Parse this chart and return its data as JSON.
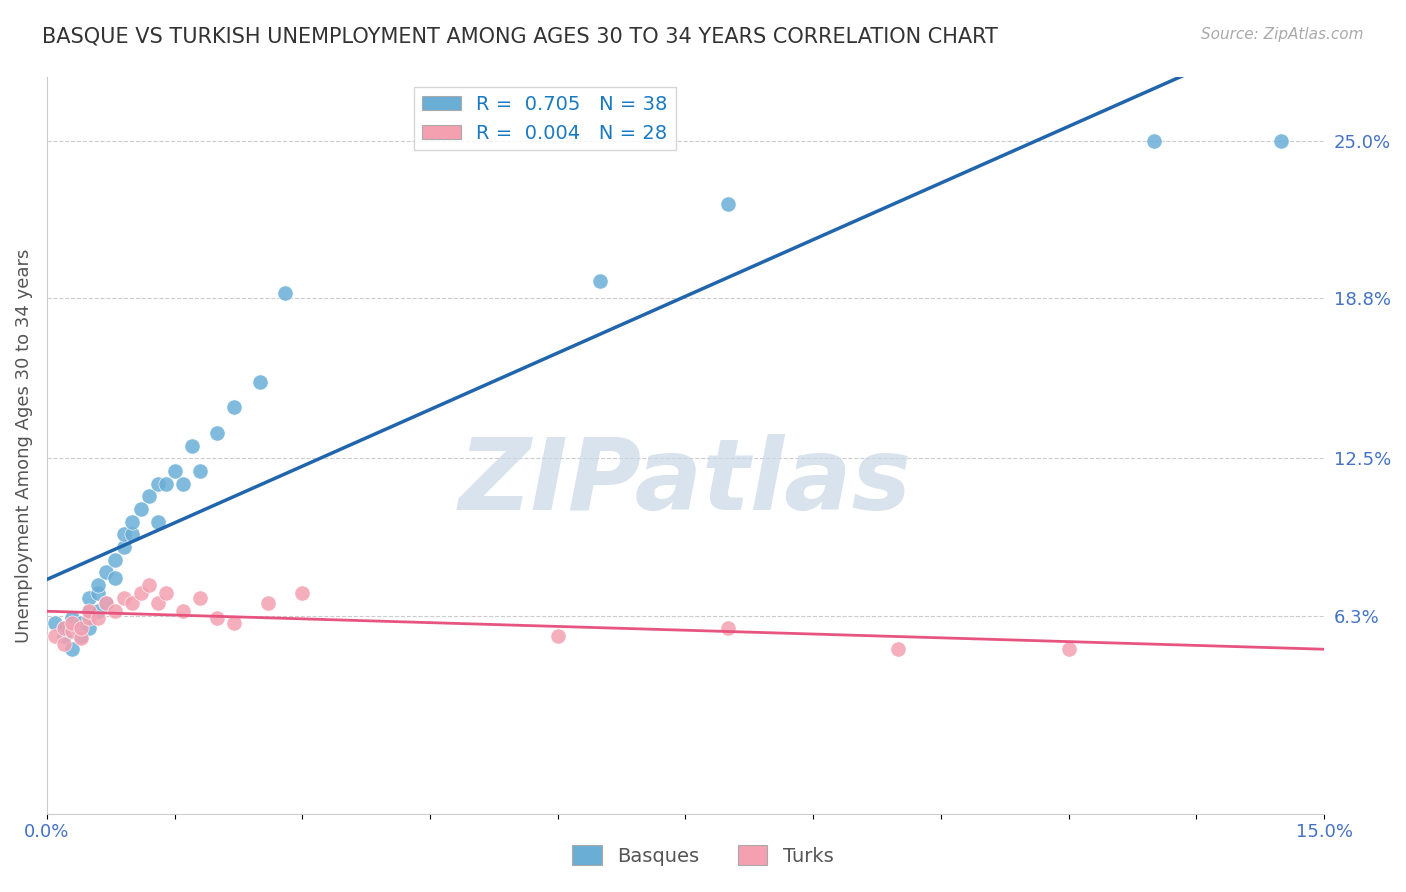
{
  "title": "BASQUE VS TURKISH UNEMPLOYMENT AMONG AGES 30 TO 34 YEARS CORRELATION CHART",
  "source": "Source: ZipAtlas.com",
  "xlabel": "",
  "ylabel": "Unemployment Among Ages 30 to 34 years",
  "xlim": [
    0.0,
    0.15
  ],
  "ylim": [
    -0.015,
    0.275
  ],
  "xticks": [
    0.0,
    0.015,
    0.03,
    0.045,
    0.06,
    0.075,
    0.09,
    0.105,
    0.12,
    0.135,
    0.15
  ],
  "xtick_labels": [
    "0.0%",
    "",
    "",
    "",
    "",
    "",
    "",
    "",
    "",
    "",
    "15.0%"
  ],
  "ytick_right_labels": [
    "25.0%",
    "18.8%",
    "12.5%",
    "6.3%"
  ],
  "ytick_right_values": [
    0.25,
    0.188,
    0.125,
    0.063
  ],
  "legend_blue_R": "R =  0.705",
  "legend_blue_N": "N = 38",
  "legend_pink_R": "R =  0.004",
  "legend_pink_N": "N = 28",
  "blue_color": "#6aaed6",
  "pink_color": "#f4a0b0",
  "trendline_blue_color": "#2166ac",
  "trendline_pink_color": "#e75480",
  "watermark": "ZIPatlas",
  "watermark_color": "#c8d8e8",
  "basque_x": [
    0.001,
    0.002,
    0.002,
    0.003,
    0.003,
    0.004,
    0.004,
    0.005,
    0.005,
    0.005,
    0.006,
    0.006,
    0.006,
    0.007,
    0.007,
    0.008,
    0.008,
    0.009,
    0.009,
    0.01,
    0.01,
    0.011,
    0.012,
    0.013,
    0.013,
    0.014,
    0.015,
    0.016,
    0.017,
    0.018,
    0.02,
    0.022,
    0.025,
    0.028,
    0.065,
    0.08,
    0.13,
    0.145
  ],
  "basque_y": [
    0.06,
    0.055,
    0.058,
    0.062,
    0.05,
    0.055,
    0.06,
    0.065,
    0.058,
    0.07,
    0.065,
    0.072,
    0.075,
    0.068,
    0.08,
    0.085,
    0.078,
    0.09,
    0.095,
    0.095,
    0.1,
    0.105,
    0.11,
    0.115,
    0.1,
    0.115,
    0.12,
    0.115,
    0.13,
    0.12,
    0.135,
    0.145,
    0.155,
    0.19,
    0.195,
    0.225,
    0.25,
    0.25
  ],
  "turk_x": [
    0.001,
    0.002,
    0.002,
    0.003,
    0.003,
    0.004,
    0.004,
    0.005,
    0.005,
    0.006,
    0.007,
    0.008,
    0.009,
    0.01,
    0.011,
    0.012,
    0.013,
    0.014,
    0.016,
    0.018,
    0.02,
    0.022,
    0.026,
    0.03,
    0.06,
    0.08,
    0.1,
    0.12
  ],
  "turk_y": [
    0.055,
    0.058,
    0.052,
    0.057,
    0.06,
    0.054,
    0.058,
    0.062,
    0.065,
    0.062,
    0.068,
    0.065,
    0.07,
    0.068,
    0.072,
    0.075,
    0.068,
    0.072,
    0.065,
    0.07,
    0.062,
    0.06,
    0.068,
    0.072,
    0.055,
    0.058,
    0.05,
    0.05
  ],
  "background_color": "#ffffff",
  "grid_color": "#cccccc",
  "title_color": "#333333",
  "axis_label_color": "#555555",
  "legend_R_color": "#1a7abf"
}
